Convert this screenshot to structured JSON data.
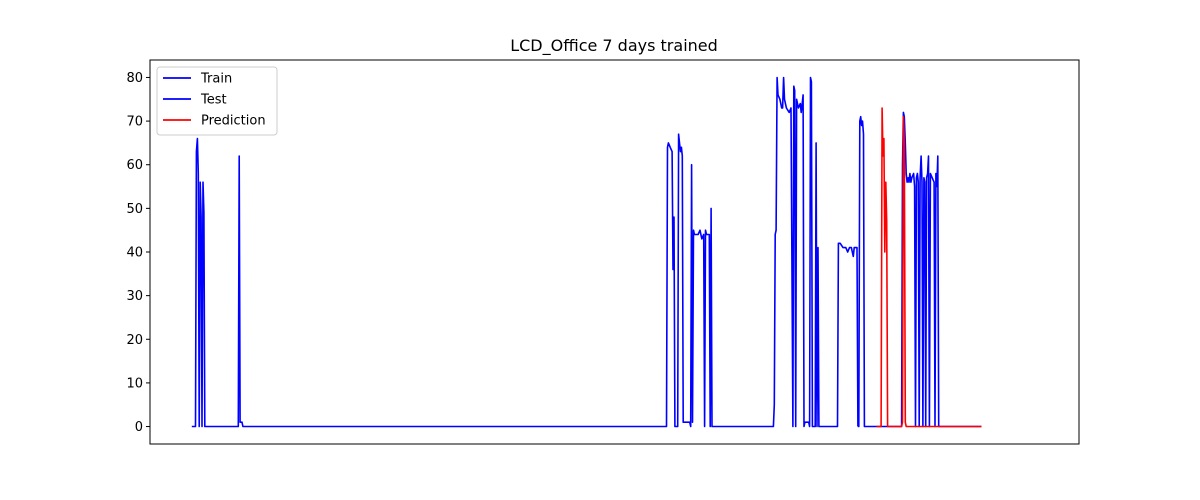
{
  "chart_data": {
    "type": "line",
    "title": "LCD_Office 7 days trained",
    "xlabel": "",
    "ylabel": "",
    "xlim": [
      0,
      1000
    ],
    "ylim": [
      -4,
      84
    ],
    "x_ticks_visible": false,
    "y_ticks": [
      0,
      10,
      20,
      30,
      40,
      50,
      60,
      70,
      80
    ],
    "legend_position": "top-left",
    "series": [
      {
        "name": "Train",
        "color": "#0000ff",
        "points": [
          [
            45,
            0
          ],
          [
            49,
            0
          ],
          [
            50,
            63
          ],
          [
            51,
            66
          ],
          [
            52,
            58
          ],
          [
            53,
            0
          ],
          [
            54,
            56
          ],
          [
            55,
            48
          ],
          [
            56,
            0
          ],
          [
            57,
            56
          ],
          [
            58,
            49
          ],
          [
            59,
            0
          ],
          [
            95,
            0
          ],
          [
            96,
            62
          ],
          [
            97,
            1
          ],
          [
            99,
            1
          ],
          [
            100,
            0
          ],
          [
            556,
            0
          ],
          [
            557,
            64
          ],
          [
            558,
            65
          ],
          [
            560,
            64
          ],
          [
            562,
            63
          ],
          [
            563,
            36
          ],
          [
            564,
            48
          ],
          [
            565,
            0
          ],
          [
            568,
            0
          ],
          [
            569,
            67
          ],
          [
            570,
            65
          ],
          [
            571,
            63
          ],
          [
            572,
            64
          ],
          [
            573,
            62
          ],
          [
            574,
            1
          ],
          [
            581,
            1
          ],
          [
            582,
            0
          ],
          [
            583,
            60
          ],
          [
            584,
            1
          ],
          [
            585,
            45
          ],
          [
            586,
            44
          ],
          [
            590,
            44
          ],
          [
            592,
            45
          ],
          [
            594,
            43
          ],
          [
            596,
            44
          ],
          [
            597,
            0
          ],
          [
            598,
            45
          ],
          [
            599,
            44
          ],
          [
            602,
            44
          ],
          [
            603,
            0
          ],
          [
            604,
            50
          ],
          [
            605,
            0
          ],
          [
            671,
            0
          ],
          [
            672,
            5
          ],
          [
            673,
            44
          ],
          [
            674,
            45
          ],
          [
            675,
            80
          ],
          [
            676,
            76
          ],
          [
            678,
            75
          ],
          [
            680,
            73
          ],
          [
            681,
            73
          ],
          [
            682,
            80
          ],
          [
            683,
            75
          ],
          [
            685,
            73
          ],
          [
            688,
            72
          ],
          [
            690,
            73
          ],
          [
            692,
            0
          ],
          [
            693,
            78
          ],
          [
            694,
            77
          ],
          [
            695,
            0
          ],
          [
            696,
            75
          ],
          [
            698,
            73
          ],
          [
            700,
            74
          ],
          [
            701,
            72
          ],
          [
            702,
            74
          ],
          [
            703,
            76
          ],
          [
            704,
            0
          ],
          [
            705,
            1
          ],
          [
            709,
            1
          ],
          [
            710,
            0
          ],
          [
            711,
            80
          ],
          [
            712,
            79
          ],
          [
            713,
            0
          ],
          [
            716,
            0
          ],
          [
            717,
            65
          ],
          [
            718,
            0
          ],
          [
            719,
            41
          ],
          [
            720,
            0
          ],
          [
            740,
            0
          ],
          [
            741,
            42
          ],
          [
            743,
            42
          ],
          [
            746,
            41
          ],
          [
            749,
            41
          ],
          [
            751,
            40
          ],
          [
            753,
            41
          ],
          [
            755,
            41
          ],
          [
            756,
            40
          ],
          [
            757,
            39
          ],
          [
            758,
            41
          ],
          [
            761,
            41
          ],
          [
            762,
            0
          ]
        ]
      },
      {
        "name": "Test",
        "color": "#0000ff",
        "points": [
          [
            762,
            0
          ],
          [
            763,
            0
          ],
          [
            764,
            70
          ],
          [
            765,
            71
          ],
          [
            766,
            69
          ],
          [
            767,
            70
          ],
          [
            768,
            67
          ],
          [
            769,
            0
          ],
          [
            770,
            0
          ],
          [
            809,
            0
          ],
          [
            810,
            60
          ],
          [
            811,
            72
          ],
          [
            812,
            71
          ],
          [
            813,
            65
          ],
          [
            814,
            58
          ],
          [
            815,
            56
          ],
          [
            816,
            57
          ],
          [
            817,
            56
          ],
          [
            818,
            58
          ],
          [
            819,
            56
          ],
          [
            820,
            57
          ],
          [
            822,
            58
          ],
          [
            823,
            55
          ],
          [
            824,
            0
          ],
          [
            825,
            57
          ],
          [
            826,
            58
          ],
          [
            827,
            56
          ],
          [
            828,
            0
          ],
          [
            829,
            57
          ],
          [
            830,
            62
          ],
          [
            831,
            56
          ],
          [
            832,
            0
          ],
          [
            833,
            57
          ],
          [
            834,
            56
          ],
          [
            835,
            0
          ],
          [
            836,
            57
          ],
          [
            837,
            58
          ],
          [
            838,
            62
          ],
          [
            839,
            0
          ],
          [
            840,
            58
          ],
          [
            842,
            57
          ],
          [
            844,
            56
          ],
          [
            845,
            0
          ],
          [
            846,
            58
          ],
          [
            847,
            55
          ],
          [
            848,
            62
          ],
          [
            849,
            0
          ],
          [
            850,
            0
          ],
          [
            895,
            0
          ]
        ]
      },
      {
        "name": "Prediction",
        "color": "#ff0000",
        "points": [
          [
            782,
            0
          ],
          [
            787,
            0
          ],
          [
            788,
            73
          ],
          [
            789,
            62
          ],
          [
            790,
            66
          ],
          [
            791,
            40
          ],
          [
            792,
            56
          ],
          [
            793,
            47
          ],
          [
            794,
            0
          ],
          [
            795,
            0
          ],
          [
            809,
            0
          ],
          [
            810,
            1
          ],
          [
            811,
            71
          ],
          [
            812,
            65
          ],
          [
            813,
            1
          ],
          [
            814,
            0
          ],
          [
            895,
            0
          ]
        ]
      }
    ]
  }
}
